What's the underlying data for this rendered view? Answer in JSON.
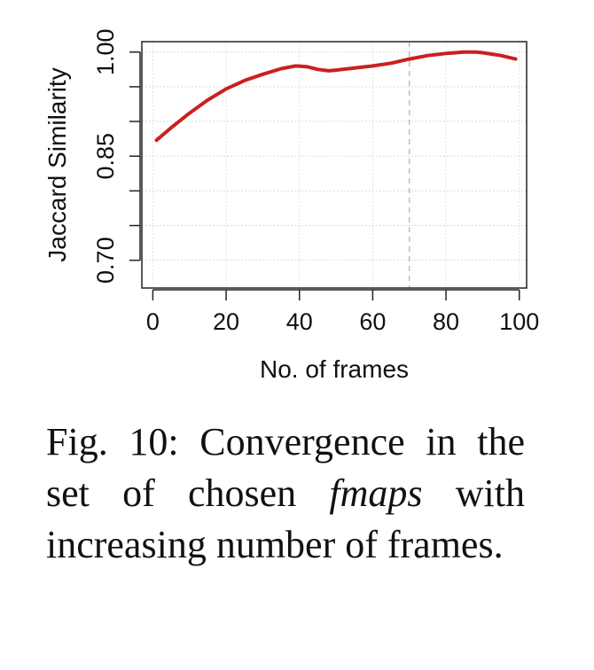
{
  "chart_data": {
    "type": "line",
    "xlabel": "No. of frames",
    "ylabel": "Jaccard Similarity",
    "xlim": [
      -3,
      102
    ],
    "ylim": [
      0.66,
      1.015
    ],
    "x_ticks": [
      0,
      20,
      40,
      60,
      80,
      100
    ],
    "x_tick_labels": [
      "0",
      "20",
      "40",
      "60",
      "80",
      "100"
    ],
    "y_ticks": [
      0.7,
      0.75,
      0.8,
      0.85,
      0.9,
      0.95,
      1.0
    ],
    "y_tick_labels": [
      "0.70",
      "",
      "",
      "0.85",
      "",
      "",
      "1.00"
    ],
    "grid": true,
    "reference_line_x": 70,
    "series": [
      {
        "color": "#cc1f1f",
        "x": [
          1,
          5,
          10,
          15,
          20,
          25,
          30,
          35,
          39,
          42,
          45,
          48,
          50,
          55,
          60,
          65,
          70,
          75,
          80,
          85,
          88,
          90,
          95,
          99
        ],
        "y": [
          0.873,
          0.891,
          0.912,
          0.931,
          0.947,
          0.959,
          0.968,
          0.976,
          0.98,
          0.979,
          0.975,
          0.973,
          0.974,
          0.977,
          0.98,
          0.984,
          0.99,
          0.995,
          0.998,
          1.0,
          1.0,
          0.999,
          0.995,
          0.99
        ]
      }
    ]
  },
  "caption": {
    "prefix": "Fig. 10: Convergence in the set of chosen ",
    "emphasis": "fmaps",
    "suffix": " with increasing number of frames."
  }
}
